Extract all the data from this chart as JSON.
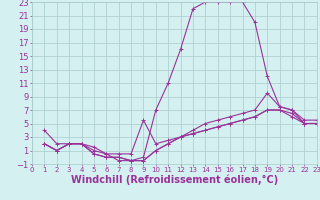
{
  "xlabel": "Windchill (Refroidissement éolien,°C)",
  "bg_color": "#d4f0f0",
  "grid_color": "#aacccc",
  "line_color": "#993399",
  "xlim": [
    0,
    23
  ],
  "ylim": [
    -1,
    23
  ],
  "xticks": [
    0,
    1,
    2,
    3,
    4,
    5,
    6,
    7,
    8,
    9,
    10,
    11,
    12,
    13,
    14,
    15,
    16,
    17,
    18,
    19,
    20,
    21,
    22,
    23
  ],
  "yticks": [
    -1,
    1,
    3,
    5,
    7,
    9,
    11,
    13,
    15,
    17,
    19,
    21,
    23
  ],
  "curve1_x": [
    1,
    2,
    3,
    4,
    5,
    6,
    7,
    8,
    9,
    10,
    11,
    12,
    13,
    14,
    15,
    16,
    17,
    18,
    19,
    20,
    21,
    22,
    23
  ],
  "curve1_y": [
    4,
    2,
    2,
    2,
    1.5,
    0.5,
    -0.5,
    -0.5,
    0,
    7,
    11,
    16,
    22,
    23,
    23,
    23,
    23,
    20,
    12,
    7.5,
    7,
    5,
    5
  ],
  "curve2_x": [
    1,
    2,
    3,
    4,
    5,
    6,
    7,
    8,
    9,
    10,
    11,
    12,
    13,
    14,
    15,
    16,
    17,
    18,
    19,
    20,
    21,
    22,
    23
  ],
  "curve2_y": [
    2,
    1,
    2,
    2,
    0.5,
    0,
    0,
    -0.5,
    -0.5,
    1,
    2,
    3,
    4,
    5,
    5.5,
    6,
    6.5,
    7,
    9.5,
    7.5,
    7,
    5.5,
    5.5
  ],
  "curve3_x": [
    1,
    2,
    3,
    4,
    5,
    6,
    7,
    8,
    9,
    10,
    11,
    12,
    13,
    14,
    15,
    16,
    17,
    18,
    19,
    20,
    21,
    22,
    23
  ],
  "curve3_y": [
    2,
    1,
    2,
    2,
    1,
    0.5,
    0.5,
    0.5,
    5.5,
    2,
    2.5,
    3,
    3.5,
    4,
    4.5,
    5,
    5.5,
    6,
    7,
    7,
    6.5,
    5,
    5
  ],
  "curve4_x": [
    1,
    2,
    3,
    4,
    5,
    6,
    7,
    8,
    9,
    10,
    11,
    12,
    13,
    14,
    15,
    16,
    17,
    18,
    19,
    20,
    21,
    22,
    23
  ],
  "curve4_y": [
    2,
    1,
    2,
    2,
    0.5,
    0,
    0,
    -0.5,
    -0.5,
    1,
    2,
    3,
    3.5,
    4,
    4.5,
    5,
    5.5,
    6,
    7,
    7,
    6,
    5,
    5
  ],
  "marker": "+",
  "markersize": 3,
  "linewidth": 0.8,
  "font_size": 6
}
